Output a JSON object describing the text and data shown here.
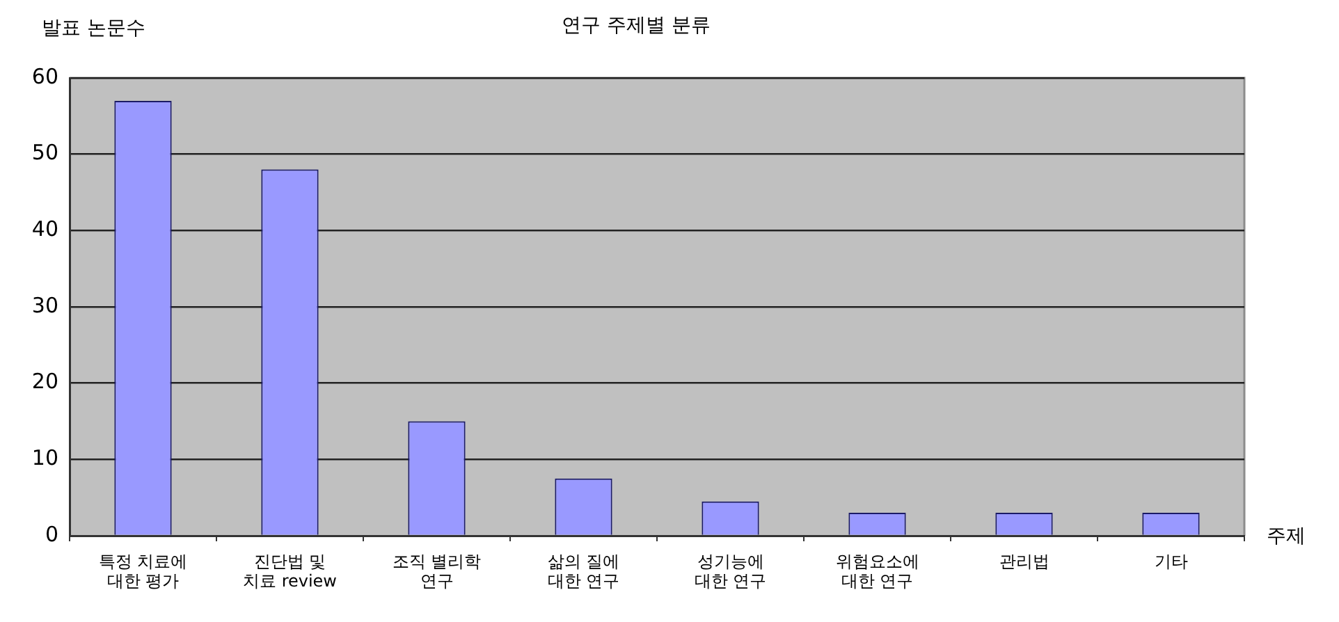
{
  "chart_data": {
    "type": "bar",
    "title": "연구 주제별 분류",
    "xlabel": "주제",
    "ylabel": "발표 논문수",
    "categories": [
      "특정 치료에\n대한 평가",
      "진단법 및\n치료 review",
      "조직 별리학\n연구",
      "삶의 질에\n대한 연구",
      "성기능에\n대한 연구",
      "위험요소에\n대한 연구",
      "관리법",
      "기타"
    ],
    "values": [
      57,
      48,
      15,
      7.5,
      4.5,
      3,
      3,
      3
    ],
    "color": "#9999ff",
    "ylim": [
      0,
      60
    ],
    "yticks": [
      0,
      10,
      20,
      30,
      40,
      50,
      60
    ],
    "grid": "y"
  }
}
